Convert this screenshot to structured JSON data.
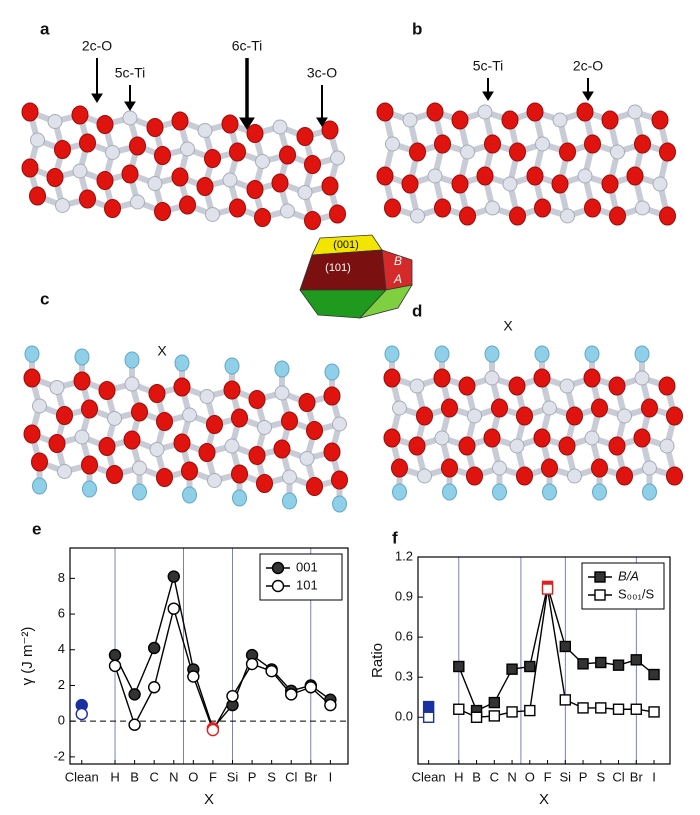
{
  "panels": {
    "a": {
      "label": "a",
      "annotations": [
        "2c-O",
        "5c-Ti",
        "6c-Ti",
        "3c-O"
      ]
    },
    "b": {
      "label": "b",
      "annotations": [
        "5c-Ti",
        "2c-O"
      ]
    },
    "c": {
      "label": "c",
      "annotation": "X"
    },
    "d": {
      "label": "d",
      "annotation": "X"
    },
    "crystal": {
      "faces": [
        "(001)",
        "(101)",
        "B",
        "A"
      ]
    }
  },
  "chart_data": [
    {
      "type": "line",
      "panel": "e",
      "xlabel": "X",
      "ylabel": "γ (J m⁻²)",
      "categories": [
        "Clean",
        "H",
        "B",
        "C",
        "N",
        "O",
        "F",
        "Si",
        "P",
        "S",
        "Cl",
        "Br",
        "I"
      ],
      "ylim": [
        -2.4,
        9.7
      ],
      "yticks": [
        -2,
        0,
        2,
        4,
        6,
        8
      ],
      "legend": "upper right",
      "series": [
        {
          "name": "001",
          "color": "#000000",
          "marker": "circle",
          "filled": true,
          "values": [
            0.9,
            3.7,
            1.5,
            4.1,
            8.1,
            2.9,
            -0.4,
            0.9,
            3.7,
            2.9,
            1.7,
            2.0,
            1.2
          ],
          "point_colors": [
            "#1a2fa0",
            "#000000",
            "#000000",
            "#000000",
            "#000000",
            "#000000",
            "#e02020",
            "#000000",
            "#000000",
            "#000000",
            "#000000",
            "#000000",
            "#000000"
          ]
        },
        {
          "name": "101",
          "color": "#000000",
          "marker": "circle",
          "filled": false,
          "values": [
            0.4,
            3.1,
            -0.2,
            1.9,
            6.3,
            2.5,
            -0.5,
            1.4,
            3.2,
            2.8,
            1.5,
            1.9,
            0.9
          ],
          "point_colors": [
            "#1a2fa0",
            "#000000",
            "#000000",
            "#000000",
            "#000000",
            "#000000",
            "#e02020",
            "#000000",
            "#000000",
            "#000000",
            "#000000",
            "#000000",
            "#000000"
          ]
        }
      ]
    },
    {
      "type": "line",
      "panel": "f",
      "xlabel": "X",
      "ylabel": "Ratio",
      "categories": [
        "Clean",
        "H",
        "B",
        "C",
        "N",
        "O",
        "F",
        "Si",
        "P",
        "S",
        "Cl",
        "Br",
        "I"
      ],
      "ylim": [
        -0.35,
        1.2
      ],
      "yticks": [
        {
          "value": 0,
          "label": "0.0"
        },
        0.3,
        0.6,
        0.9,
        1.2
      ],
      "legend": "upper right",
      "series": [
        {
          "name": "B/A",
          "color": "#000000",
          "marker": "square",
          "filled": true,
          "values": [
            0.08,
            0.38,
            0.05,
            0.11,
            0.36,
            0.38,
            0.98,
            0.53,
            0.4,
            0.41,
            0.39,
            0.43,
            0.32
          ],
          "point_colors": [
            "#1a2fa0",
            "#000000",
            "#000000",
            "#000000",
            "#000000",
            "#000000",
            "#e02020",
            "#000000",
            "#000000",
            "#000000",
            "#000000",
            "#000000",
            "#000000"
          ]
        },
        {
          "name": "S₀₀₁/S",
          "color": "#000000",
          "marker": "square",
          "filled": false,
          "values": [
            0.0,
            0.06,
            0.0,
            0.01,
            0.04,
            0.05,
            0.96,
            0.13,
            0.07,
            0.07,
            0.06,
            0.06,
            0.04
          ],
          "point_colors": [
            "#1a2fa0",
            "#000000",
            "#000000",
            "#000000",
            "#000000",
            "#000000",
            "#e02020",
            "#000000",
            "#000000",
            "#000000",
            "#000000",
            "#000000",
            "#000000"
          ]
        }
      ]
    }
  ]
}
